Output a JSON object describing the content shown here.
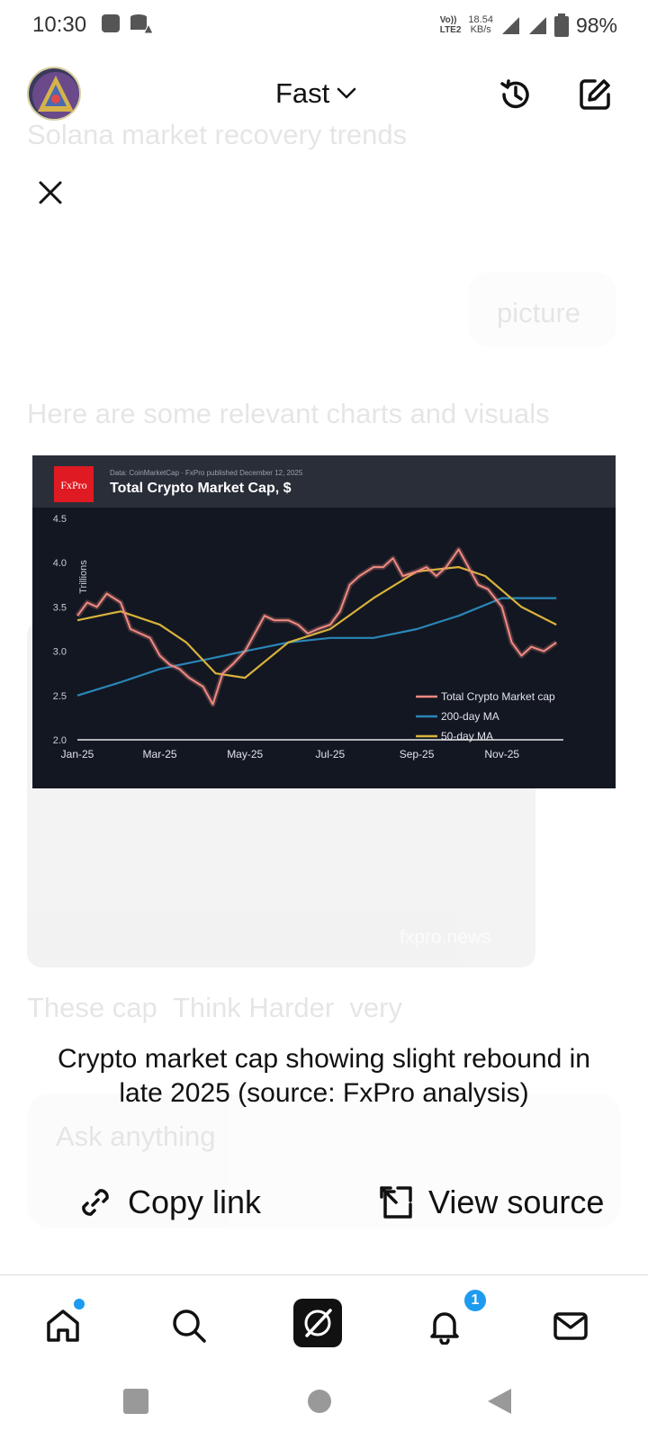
{
  "status_bar": {
    "time": "10:30",
    "net_speed_value": "18.54",
    "net_speed_unit": "KB/s",
    "volte_label_top": "Vo))",
    "volte_label_bottom": "LTE2",
    "battery": "98%"
  },
  "header": {
    "model": "Fast",
    "icons": [
      "history-icon",
      "new-chat-icon"
    ]
  },
  "background": {
    "text_top": "Solana market recovery trends",
    "pill": "picture",
    "text_mid": "Here are some relevant charts and visuals",
    "text_after": "These cap",
    "think_harder": "Think Harder",
    "text_after2": "very",
    "input_placeholder": "Ask anything"
  },
  "chart_image": {
    "brand": "FxPro",
    "meta": "Data: CoinMarketCap · FxPro published December 12, 2025",
    "title": "Total Crypto Market Cap, $",
    "watermark": "fxpro.news"
  },
  "chart_data": {
    "type": "line",
    "title": "Total Crypto Market Cap, $",
    "ylabel": "Trillions",
    "xlabel": "",
    "x_ticks": [
      "Jan-25",
      "Mar-25",
      "May-25",
      "Jul-25",
      "Sep-25",
      "Nov-25"
    ],
    "y_ticks": [
      "2.0",
      "2.5",
      "3.0",
      "3.5",
      "4.0",
      "4.5"
    ],
    "ylim": [
      2.0,
      4.5
    ],
    "legend_position": "bottom-right",
    "series": [
      {
        "name": "Total Crypto Market cap",
        "color": "#f28b82",
        "x": [
          "2025-01-01",
          "2025-01-08",
          "2025-01-15",
          "2025-01-22",
          "2025-02-01",
          "2025-02-08",
          "2025-02-15",
          "2025-02-22",
          "2025-03-01",
          "2025-03-08",
          "2025-03-15",
          "2025-03-22",
          "2025-04-01",
          "2025-04-08",
          "2025-04-15",
          "2025-04-22",
          "2025-05-01",
          "2025-05-08",
          "2025-05-15",
          "2025-05-22",
          "2025-06-01",
          "2025-06-08",
          "2025-06-15",
          "2025-06-22",
          "2025-07-01",
          "2025-07-08",
          "2025-07-15",
          "2025-07-22",
          "2025-08-01",
          "2025-08-08",
          "2025-08-15",
          "2025-08-22",
          "2025-09-01",
          "2025-09-08",
          "2025-09-15",
          "2025-09-22",
          "2025-10-01",
          "2025-10-08",
          "2025-10-15",
          "2025-10-22",
          "2025-11-01",
          "2025-11-08",
          "2025-11-15",
          "2025-11-22",
          "2025-12-01",
          "2025-12-10"
        ],
        "values": [
          3.4,
          3.55,
          3.5,
          3.65,
          3.55,
          3.25,
          3.2,
          3.15,
          2.95,
          2.85,
          2.8,
          2.7,
          2.6,
          2.4,
          2.75,
          2.85,
          3.0,
          3.2,
          3.4,
          3.35,
          3.35,
          3.3,
          3.2,
          3.25,
          3.3,
          3.45,
          3.75,
          3.85,
          3.95,
          3.95,
          4.05,
          3.85,
          3.9,
          3.95,
          3.85,
          3.95,
          4.15,
          3.95,
          3.75,
          3.7,
          3.5,
          3.1,
          2.95,
          3.05,
          3.0,
          3.1
        ]
      },
      {
        "name": "200-day MA",
        "color": "#2a86b8",
        "x": [
          "2025-01-01",
          "2025-02-01",
          "2025-03-01",
          "2025-04-01",
          "2025-05-01",
          "2025-06-01",
          "2025-07-01",
          "2025-08-01",
          "2025-09-01",
          "2025-10-01",
          "2025-11-01",
          "2025-12-10"
        ],
        "values": [
          2.5,
          2.65,
          2.8,
          2.9,
          3.0,
          3.1,
          3.15,
          3.15,
          3.25,
          3.4,
          3.6,
          3.6
        ]
      },
      {
        "name": "50-day MA",
        "color": "#d9b23b",
        "x": [
          "2025-01-01",
          "2025-02-01",
          "2025-03-01",
          "2025-03-20",
          "2025-04-10",
          "2025-05-01",
          "2025-06-01",
          "2025-07-01",
          "2025-08-01",
          "2025-09-01",
          "2025-10-01",
          "2025-10-20",
          "2025-11-15",
          "2025-12-10"
        ],
        "values": [
          3.35,
          3.45,
          3.3,
          3.1,
          2.75,
          2.7,
          3.1,
          3.25,
          3.6,
          3.9,
          3.95,
          3.85,
          3.5,
          3.3
        ]
      }
    ]
  },
  "caption": "Crypto market cap showing slight rebound in late 2025 (source: FxPro analysis)",
  "actions": {
    "copy_link": "Copy link",
    "view_source": "View source"
  },
  "bottom_nav": {
    "items": [
      "home-icon",
      "search-icon",
      "grok-icon",
      "notifications-icon",
      "messages-icon"
    ],
    "notification_count": "1"
  },
  "system_nav": [
    "recents-icon",
    "home-icon",
    "back-icon"
  ]
}
